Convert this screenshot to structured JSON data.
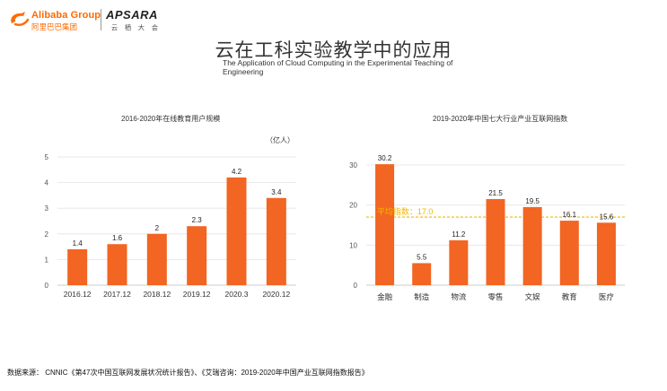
{
  "header": {
    "alibaba_en": "Alibaba Group",
    "alibaba_cn": "阿里巴巴集团",
    "apsara_en": "APSARA",
    "apsara_cn": "云 栖 大 会",
    "title_cn": "云在工科实验教学中的应用",
    "title_en": "The Application of Cloud Computing in the Experimental Teaching of Engineering"
  },
  "chart_data": [
    {
      "type": "bar",
      "title": "2016-2020年在线教育用户规模",
      "unit_label": "（亿人）",
      "categories": [
        "2016.12",
        "2017.12",
        "2018.12",
        "2019.12",
        "2020.3",
        "2020.12"
      ],
      "values": [
        1.4,
        1.6,
        2,
        2.3,
        4.2,
        3.4
      ],
      "value_labels": [
        "1.4",
        "1.6",
        "2",
        "2.3",
        "4.2",
        "3.4"
      ],
      "yticks": [
        "0",
        "1",
        "2",
        "3",
        "4",
        "5"
      ],
      "ylim": [
        0,
        5
      ],
      "bar_color": "#f26522",
      "grid": true
    },
    {
      "type": "bar",
      "title": "2019-2020年中国七大行业产业互联网指数",
      "categories": [
        "金融",
        "制造",
        "物流",
        "零售",
        "文娱",
        "教育",
        "医疗"
      ],
      "values": [
        30.2,
        5.5,
        11.2,
        21.5,
        19.5,
        16.1,
        15.6
      ],
      "value_labels": [
        "30.2",
        "5.5",
        "11.2",
        "21.5",
        "19.5",
        "16.1",
        "15.6"
      ],
      "yticks": [
        "0",
        "10",
        "20",
        "30"
      ],
      "ylim": [
        0,
        32
      ],
      "bar_color": "#f26522",
      "grid": true,
      "reference_line": {
        "value": 17.0,
        "label": "平均指数：17.0",
        "color": "#f2b800"
      }
    }
  ],
  "footnote": "数据来源：  CNNIC《第47次中国互联网发展状况统计报告》、《艾瑞咨询：2019-2020年中国产业互联网指数报告》"
}
